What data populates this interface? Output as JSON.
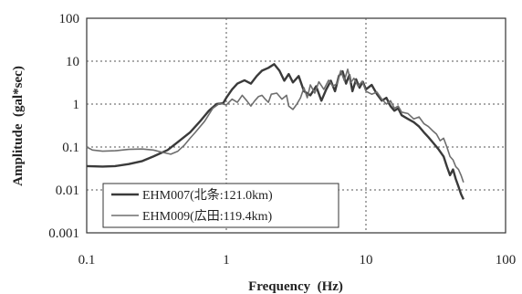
{
  "chart_data": {
    "type": "line",
    "xscale": "log",
    "yscale": "log",
    "xlabel": "Frequency  (Hz)",
    "ylabel": "Amplitude  (gal*sec)",
    "xlim": [
      0.1,
      100
    ],
    "ylim": [
      0.001,
      100
    ],
    "x_ticks": [
      "0.1",
      "1",
      "10",
      "100"
    ],
    "y_ticks": [
      "0.001",
      "0.01",
      "0.1",
      "1",
      "10",
      "100"
    ],
    "grid": true,
    "legend_position": "bottom-left",
    "series": [
      {
        "name": "EHM007(北条:121.0km)",
        "color": "#3a3a3a",
        "points": [
          [
            0.1,
            0.036
          ],
          [
            0.13,
            0.035
          ],
          [
            0.16,
            0.036
          ],
          [
            0.2,
            0.04
          ],
          [
            0.25,
            0.047
          ],
          [
            0.3,
            0.06
          ],
          [
            0.38,
            0.085
          ],
          [
            0.45,
            0.13
          ],
          [
            0.55,
            0.22
          ],
          [
            0.65,
            0.4
          ],
          [
            0.75,
            0.7
          ],
          [
            0.85,
            1.0
          ],
          [
            0.95,
            1.05
          ],
          [
            1.0,
            1.4
          ],
          [
            1.1,
            2.2
          ],
          [
            1.2,
            3.0
          ],
          [
            1.35,
            3.6
          ],
          [
            1.5,
            3.0
          ],
          [
            1.65,
            4.5
          ],
          [
            1.8,
            6.0
          ],
          [
            2.0,
            7.0
          ],
          [
            2.2,
            8.5
          ],
          [
            2.4,
            6.0
          ],
          [
            2.6,
            3.5
          ],
          [
            2.8,
            5.0
          ],
          [
            3.0,
            3.2
          ],
          [
            3.3,
            4.5
          ],
          [
            3.6,
            2.0
          ],
          [
            4.0,
            1.6
          ],
          [
            4.4,
            2.6
          ],
          [
            4.8,
            1.2
          ],
          [
            5.2,
            2.2
          ],
          [
            5.6,
            3.5
          ],
          [
            6.0,
            2.0
          ],
          [
            6.4,
            4.5
          ],
          [
            6.8,
            5.8
          ],
          [
            7.2,
            3.0
          ],
          [
            7.6,
            4.8
          ],
          [
            8.0,
            2.0
          ],
          [
            8.5,
            3.8
          ],
          [
            9.0,
            2.4
          ],
          [
            9.5,
            3.3
          ],
          [
            10,
            2.2
          ],
          [
            11,
            2.8
          ],
          [
            12,
            1.7
          ],
          [
            13,
            1.2
          ],
          [
            14,
            1.4
          ],
          [
            15,
            0.9
          ],
          [
            16,
            0.7
          ],
          [
            17,
            0.8
          ],
          [
            18,
            0.55
          ],
          [
            20,
            0.45
          ],
          [
            22,
            0.38
          ],
          [
            24,
            0.3
          ],
          [
            26,
            0.22
          ],
          [
            28,
            0.17
          ],
          [
            30,
            0.13
          ],
          [
            33,
            0.09
          ],
          [
            36,
            0.06
          ],
          [
            38,
            0.035
          ],
          [
            40,
            0.022
          ],
          [
            42,
            0.03
          ],
          [
            44,
            0.018
          ],
          [
            46,
            0.012
          ],
          [
            48,
            0.008
          ],
          [
            50,
            0.006
          ]
        ]
      },
      {
        "name": "EHM009(広田:119.4km)",
        "color": "#6e6e6e",
        "points": [
          [
            0.1,
            0.1
          ],
          [
            0.11,
            0.085
          ],
          [
            0.13,
            0.08
          ],
          [
            0.16,
            0.082
          ],
          [
            0.2,
            0.088
          ],
          [
            0.25,
            0.09
          ],
          [
            0.3,
            0.085
          ],
          [
            0.35,
            0.075
          ],
          [
            0.4,
            0.068
          ],
          [
            0.45,
            0.08
          ],
          [
            0.5,
            0.11
          ],
          [
            0.55,
            0.16
          ],
          [
            0.6,
            0.22
          ],
          [
            0.7,
            0.4
          ],
          [
            0.8,
            0.8
          ],
          [
            0.9,
            1.05
          ],
          [
            1.0,
            0.95
          ],
          [
            1.1,
            1.3
          ],
          [
            1.2,
            1.1
          ],
          [
            1.3,
            1.6
          ],
          [
            1.4,
            1.2
          ],
          [
            1.5,
            0.9
          ],
          [
            1.6,
            1.2
          ],
          [
            1.7,
            1.5
          ],
          [
            1.8,
            1.6
          ],
          [
            1.9,
            1.3
          ],
          [
            2.0,
            1.1
          ],
          [
            2.1,
            1.7
          ],
          [
            2.3,
            1.8
          ],
          [
            2.5,
            1.3
          ],
          [
            2.7,
            1.6
          ],
          [
            2.8,
            0.9
          ],
          [
            3.0,
            0.75
          ],
          [
            3.2,
            1.0
          ],
          [
            3.4,
            1.4
          ],
          [
            3.6,
            2.4
          ],
          [
            3.8,
            1.4
          ],
          [
            4.0,
            2.8
          ],
          [
            4.3,
            1.8
          ],
          [
            4.6,
            3.3
          ],
          [
            5.0,
            2.2
          ],
          [
            5.4,
            3.6
          ],
          [
            5.8,
            2.6
          ],
          [
            6.2,
            3.0
          ],
          [
            6.6,
            6.0
          ],
          [
            7.0,
            3.5
          ],
          [
            7.4,
            6.5
          ],
          [
            7.8,
            3.2
          ],
          [
            8.2,
            4.0
          ],
          [
            8.8,
            2.6
          ],
          [
            9.4,
            3.4
          ],
          [
            10,
            2.0
          ],
          [
            11,
            1.7
          ],
          [
            12,
            1.9
          ],
          [
            13,
            1.3
          ],
          [
            14,
            1.0
          ],
          [
            15,
            1.2
          ],
          [
            16,
            0.8
          ],
          [
            17,
            0.9
          ],
          [
            18,
            0.65
          ],
          [
            20,
            0.6
          ],
          [
            22,
            0.45
          ],
          [
            24,
            0.5
          ],
          [
            26,
            0.35
          ],
          [
            28,
            0.3
          ],
          [
            30,
            0.24
          ],
          [
            32,
            0.2
          ],
          [
            34,
            0.14
          ],
          [
            36,
            0.16
          ],
          [
            38,
            0.1
          ],
          [
            40,
            0.06
          ],
          [
            42,
            0.05
          ],
          [
            44,
            0.035
          ],
          [
            46,
            0.03
          ],
          [
            48,
            0.022
          ],
          [
            50,
            0.015
          ]
        ]
      }
    ]
  }
}
